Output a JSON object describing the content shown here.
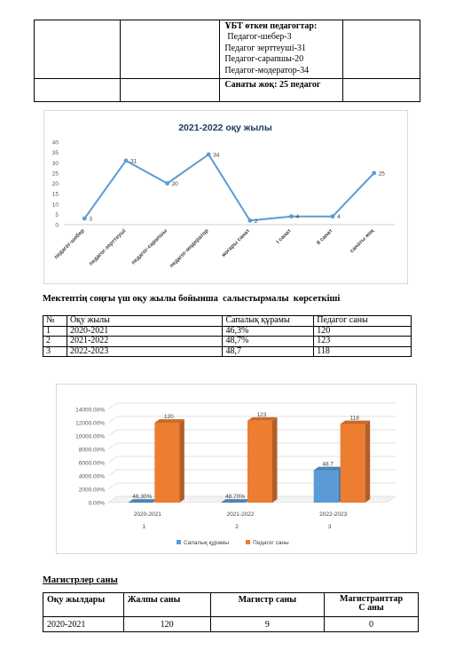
{
  "top_table": {
    "passed_title": "ҰБТ өткен педагогтар:",
    "passed_items": [
      "Педагог-шебер-3",
      "Педагог зерттеуші-31",
      "Педагог-сарапшы-20",
      "Педагог-модератор-34"
    ],
    "no_category": "Санаты жоқ: 25 педагог"
  },
  "chart_data": [
    {
      "type": "line",
      "title": "2021-2022 оқу жылы",
      "categories": [
        "педагог-шебер",
        "педагог-зерттеуші",
        "педагог-сарапшы",
        "педагог-модератор",
        "жоғары санат",
        "I санат",
        "II санат",
        "санаты жоқ"
      ],
      "values": [
        3,
        31,
        20,
        34,
        2,
        4,
        4,
        25
      ],
      "value_labels": [
        "3",
        "31",
        "20",
        "34",
        "2",
        "4",
        "4",
        "25"
      ],
      "y_ticks": [
        "0",
        "5",
        "10",
        "15",
        "20",
        "25",
        "30",
        "35",
        "40"
      ],
      "ylim": [
        0,
        40
      ],
      "grid": false,
      "color": "#5b9bd5"
    },
    {
      "type": "bar",
      "categories": [
        "2020-2021",
        "2021-2022",
        "2022-2023"
      ],
      "sub_labels": [
        "1",
        "2",
        "3"
      ],
      "series": [
        {
          "name": "Сапалық құрамы",
          "values": [
            46.3,
            48.7,
            48.7
          ],
          "labels": [
            "46.30%",
            "48.70%",
            "48.7"
          ],
          "color": "#5b9bd5",
          "plot_values": [
            0,
            0,
            48.7
          ]
        },
        {
          "name": "Педагог саны",
          "values": [
            120,
            123,
            118
          ],
          "labels": [
            "120",
            "123",
            "118"
          ],
          "color": "#ed7d31",
          "plot_values": [
            120,
            123,
            118
          ]
        }
      ],
      "y_ticks": [
        "0.00%",
        "2000.00%",
        "4000.00%",
        "6000.00%",
        "8000.00%",
        "10000.00%",
        "12000.00%",
        "14000.00%"
      ],
      "ylim": [
        0,
        140
      ],
      "legend_position": "bottom"
    }
  ],
  "comparison": {
    "title": "Мектептің соңғы үш оқу жылы бойынша  салыстырмалы  көрсеткіші",
    "headers": [
      "№",
      "Оқу жылы",
      "Сапалық құрамы",
      "Педагог саны"
    ],
    "rows": [
      [
        "1",
        "2020-2021",
        "46,3%",
        "120"
      ],
      [
        "2",
        "2021-2022",
        "48,7%",
        "123"
      ],
      [
        "3",
        "2022-2023",
        "48,7",
        "118"
      ]
    ]
  },
  "masters": {
    "title": "Магистрлер саны",
    "headers": [
      "Оқу жылдары",
      "Жалпы саны",
      "Магистр саны",
      "Магистранттар",
      "С аны"
    ],
    "row": [
      "2020-2021",
      "120",
      "9",
      "0"
    ]
  }
}
